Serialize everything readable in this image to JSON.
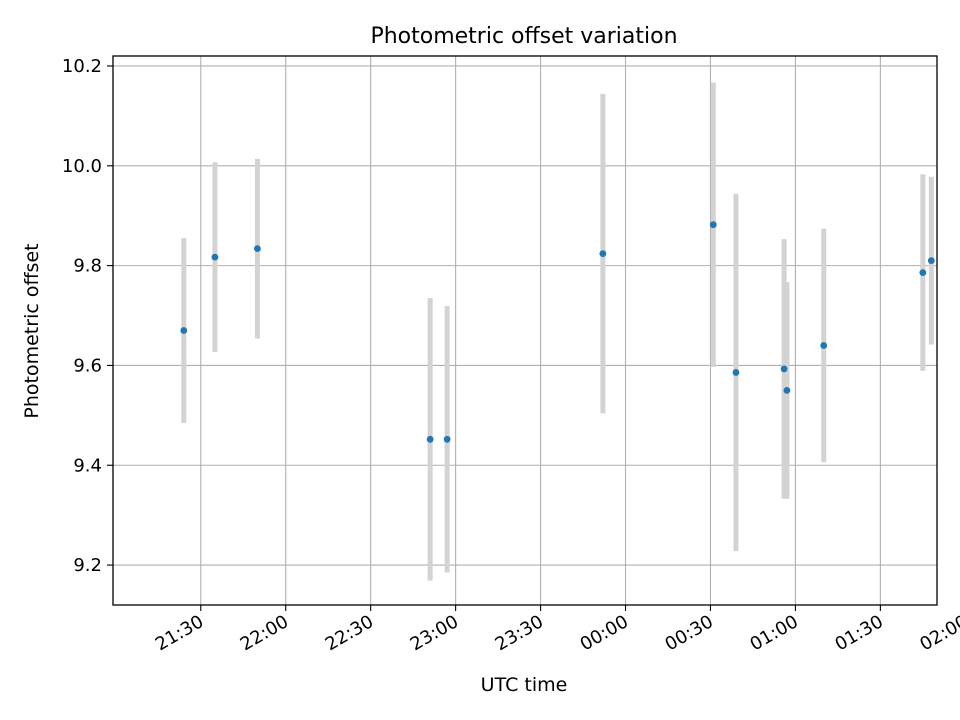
{
  "chart_data": {
    "type": "scatter",
    "title": "Photometric offset variation",
    "xlabel": "UTC time",
    "ylabel": "Photometric offset",
    "x_is_time": true,
    "time_origin_label": "21:30",
    "xlim_minutes": [
      -31,
      260
    ],
    "ylim": [
      9.12,
      10.22
    ],
    "grid": true,
    "xticks": [
      {
        "minutes": 0,
        "label": "21:30"
      },
      {
        "minutes": 30,
        "label": "22:00"
      },
      {
        "minutes": 60,
        "label": "22:30"
      },
      {
        "minutes": 90,
        "label": "23:00"
      },
      {
        "minutes": 120,
        "label": "23:30"
      },
      {
        "minutes": 150,
        "label": "00:00"
      },
      {
        "minutes": 180,
        "label": "00:30"
      },
      {
        "minutes": 210,
        "label": "01:00"
      },
      {
        "minutes": 240,
        "label": "01:30"
      },
      {
        "minutes": 270,
        "label": "02:00"
      }
    ],
    "yticks": [
      {
        "value": 9.2,
        "label": "9.2"
      },
      {
        "value": 9.4,
        "label": "9.4"
      },
      {
        "value": 9.6,
        "label": "9.6"
      },
      {
        "value": 9.8,
        "label": "9.8"
      },
      {
        "value": 10.0,
        "label": "10.0"
      },
      {
        "value": 10.2,
        "label": "10.2"
      }
    ],
    "series": [
      {
        "marker_color": "#1f77b4",
        "errorbar_color": "#d3d3d3",
        "points": [
          {
            "time": "21:24",
            "y": 9.67,
            "err": 0.185
          },
          {
            "time": "21:35",
            "y": 9.817,
            "err": 0.19
          },
          {
            "time": "21:50",
            "y": 9.834,
            "err": 0.18
          },
          {
            "time": "22:51",
            "y": 9.452,
            "err": 0.283
          },
          {
            "time": "22:57",
            "y": 9.452,
            "err": 0.267
          },
          {
            "time": "23:52",
            "y": 9.824,
            "err": 0.32
          },
          {
            "time": "00:31",
            "y": 9.882,
            "err": 0.285
          },
          {
            "time": "00:39",
            "y": 9.586,
            "err": 0.358
          },
          {
            "time": "00:56",
            "y": 9.593,
            "err": 0.26
          },
          {
            "time": "00:57",
            "y": 9.55,
            "err": 0.217
          },
          {
            "time": "01:10",
            "y": 9.64,
            "err": 0.234
          },
          {
            "time": "01:45",
            "y": 9.786,
            "err": 0.197
          },
          {
            "time": "01:48",
            "y": 9.81,
            "err": 0.168
          }
        ]
      }
    ]
  }
}
